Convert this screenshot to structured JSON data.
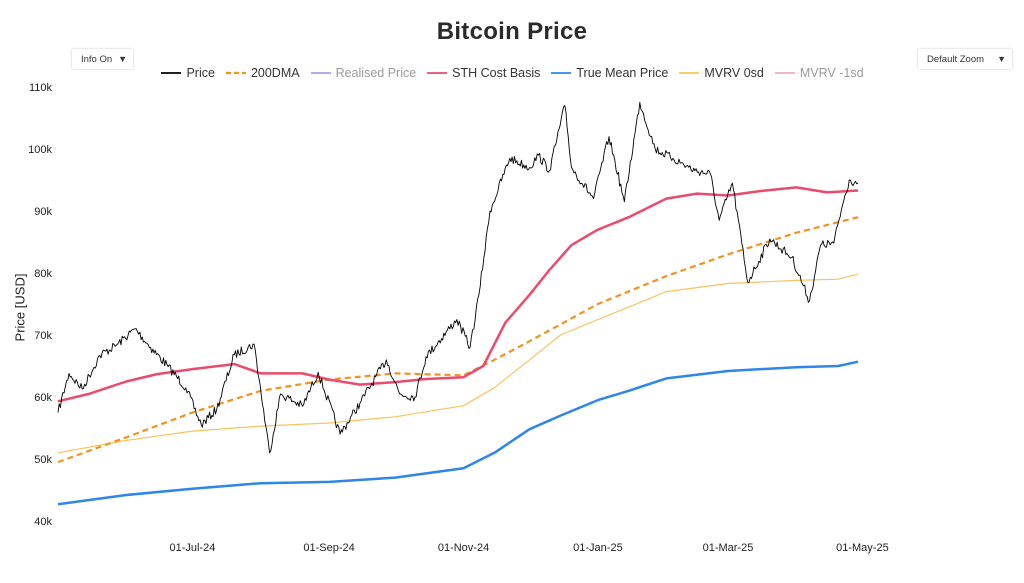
{
  "header": {
    "title": "Bitcoin Price",
    "info_toggle": "Info On",
    "zoom_select": "Default Zoom"
  },
  "chart_data": {
    "type": "line",
    "title": "Bitcoin Price",
    "ylabel": "Price [USD]",
    "xlabel": "",
    "ylim": [
      40000,
      110000
    ],
    "y_ticks": [
      "40k",
      "50k",
      "60k",
      "70k",
      "80k",
      "90k",
      "100k",
      "110k"
    ],
    "x_ticks": [
      "01-Jul-24",
      "01-Sep-24",
      "01-Nov-24",
      "01-Jan-25",
      "01-Mar-25",
      "01-May-25"
    ],
    "x_range": [
      "2024-05-01",
      "2025-04-29"
    ],
    "grid": false,
    "legend_position": "top",
    "series": [
      {
        "name": "Price",
        "color": "#000000",
        "dash": "solid",
        "visible": true,
        "points": [
          [
            "2024-05-01",
            57500
          ],
          [
            "2024-05-06",
            63800
          ],
          [
            "2024-05-12",
            61300
          ],
          [
            "2024-05-20",
            66700
          ],
          [
            "2024-05-28",
            68500
          ],
          [
            "2024-06-05",
            71000
          ],
          [
            "2024-06-12",
            68000
          ],
          [
            "2024-06-20",
            64900
          ],
          [
            "2024-06-28",
            61500
          ],
          [
            "2024-07-05",
            55500
          ],
          [
            "2024-07-12",
            58000
          ],
          [
            "2024-07-20",
            66800
          ],
          [
            "2024-07-29",
            68500
          ],
          [
            "2024-08-05",
            51000
          ],
          [
            "2024-08-10",
            60500
          ],
          [
            "2024-08-20",
            58500
          ],
          [
            "2024-08-27",
            64000
          ],
          [
            "2024-09-06",
            54000
          ],
          [
            "2024-09-15",
            59000
          ],
          [
            "2024-09-27",
            66000
          ],
          [
            "2024-10-03",
            60500
          ],
          [
            "2024-10-10",
            60000
          ],
          [
            "2024-10-15",
            66500
          ],
          [
            "2024-10-29",
            72500
          ],
          [
            "2024-11-04",
            68000
          ],
          [
            "2024-11-08",
            76500
          ],
          [
            "2024-11-13",
            90000
          ],
          [
            "2024-11-22",
            98500
          ],
          [
            "2024-12-01",
            97000
          ],
          [
            "2024-12-05",
            99000
          ],
          [
            "2024-12-10",
            96500
          ],
          [
            "2024-12-17",
            107000
          ],
          [
            "2024-12-20",
            97000
          ],
          [
            "2024-12-30",
            92000
          ],
          [
            "2025-01-06",
            102000
          ],
          [
            "2025-01-13",
            91500
          ],
          [
            "2025-01-20",
            107500
          ],
          [
            "2025-01-27",
            100000
          ],
          [
            "2025-02-04",
            98500
          ],
          [
            "2025-02-14",
            96500
          ],
          [
            "2025-02-21",
            96000
          ],
          [
            "2025-02-25",
            88500
          ],
          [
            "2025-03-03",
            94500
          ],
          [
            "2025-03-10",
            78500
          ],
          [
            "2025-03-20",
            85500
          ],
          [
            "2025-03-30",
            82500
          ],
          [
            "2025-04-07",
            75500
          ],
          [
            "2025-04-12",
            84500
          ],
          [
            "2025-04-18",
            84800
          ],
          [
            "2025-04-22",
            91000
          ],
          [
            "2025-04-25",
            95000
          ],
          [
            "2025-04-29",
            94500
          ]
        ]
      },
      {
        "name": "200DMA",
        "color": "#f4921f",
        "dash": "dashed",
        "visible": true,
        "points": [
          [
            "2024-05-01",
            49500
          ],
          [
            "2024-06-01",
            53500
          ],
          [
            "2024-07-01",
            57500
          ],
          [
            "2024-08-01",
            61000
          ],
          [
            "2024-09-01",
            62800
          ],
          [
            "2024-10-01",
            63800
          ],
          [
            "2024-11-01",
            63500
          ],
          [
            "2024-11-15",
            66000
          ],
          [
            "2024-12-01",
            69000
          ],
          [
            "2025-01-01",
            75000
          ],
          [
            "2025-02-01",
            79500
          ],
          [
            "2025-03-01",
            83000
          ],
          [
            "2025-04-01",
            86500
          ],
          [
            "2025-04-29",
            89000
          ]
        ]
      },
      {
        "name": "Realised Price",
        "color": "#a99cf0",
        "dash": "solid",
        "visible": false,
        "points": []
      },
      {
        "name": "STH Cost Basis",
        "color": "#ea4b6c",
        "dash": "solid",
        "visible": true,
        "points": [
          [
            "2024-05-01",
            59300
          ],
          [
            "2024-05-15",
            60500
          ],
          [
            "2024-06-01",
            62500
          ],
          [
            "2024-06-15",
            63700
          ],
          [
            "2024-07-01",
            64500
          ],
          [
            "2024-07-20",
            65300
          ],
          [
            "2024-08-01",
            63800
          ],
          [
            "2024-08-20",
            63800
          ],
          [
            "2024-09-01",
            62800
          ],
          [
            "2024-09-15",
            62000
          ],
          [
            "2024-10-01",
            62400
          ],
          [
            "2024-10-15",
            62900
          ],
          [
            "2024-11-01",
            63200
          ],
          [
            "2024-11-10",
            65000
          ],
          [
            "2024-11-20",
            72000
          ],
          [
            "2024-12-01",
            76500
          ],
          [
            "2024-12-10",
            80500
          ],
          [
            "2024-12-20",
            84500
          ],
          [
            "2025-01-01",
            87000
          ],
          [
            "2025-01-15",
            89000
          ],
          [
            "2025-02-01",
            92000
          ],
          [
            "2025-02-15",
            92800
          ],
          [
            "2025-03-01",
            92500
          ],
          [
            "2025-03-15",
            93200
          ],
          [
            "2025-04-01",
            93800
          ],
          [
            "2025-04-15",
            93000
          ],
          [
            "2025-04-29",
            93300
          ]
        ]
      },
      {
        "name": "True Mean Price",
        "color": "#2e86e8",
        "dash": "solid",
        "visible": true,
        "points": [
          [
            "2024-05-01",
            42700
          ],
          [
            "2024-06-01",
            44200
          ],
          [
            "2024-07-01",
            45200
          ],
          [
            "2024-08-01",
            46100
          ],
          [
            "2024-09-01",
            46300
          ],
          [
            "2024-10-01",
            47000
          ],
          [
            "2024-11-01",
            48500
          ],
          [
            "2024-11-15",
            51000
          ],
          [
            "2024-12-01",
            54800
          ],
          [
            "2024-12-15",
            57000
          ],
          [
            "2025-01-01",
            59500
          ],
          [
            "2025-01-15",
            61000
          ],
          [
            "2025-02-01",
            63000
          ],
          [
            "2025-03-01",
            64200
          ],
          [
            "2025-04-01",
            64800
          ],
          [
            "2025-04-20",
            65000
          ],
          [
            "2025-04-29",
            65700
          ]
        ]
      },
      {
        "name": "MVRV 0sd",
        "color": "#f9c35e",
        "dash": "solid",
        "visible": true,
        "points": [
          [
            "2024-05-01",
            51000
          ],
          [
            "2024-06-01",
            53000
          ],
          [
            "2024-07-01",
            54500
          ],
          [
            "2024-08-01",
            55300
          ],
          [
            "2024-09-01",
            55800
          ],
          [
            "2024-10-01",
            56800
          ],
          [
            "2024-11-01",
            58600
          ],
          [
            "2024-11-15",
            61500
          ],
          [
            "2024-12-01",
            66000
          ],
          [
            "2024-12-15",
            70000
          ],
          [
            "2025-01-01",
            72500
          ],
          [
            "2025-01-15",
            74500
          ],
          [
            "2025-02-01",
            77000
          ],
          [
            "2025-03-01",
            78300
          ],
          [
            "2025-04-01",
            78800
          ],
          [
            "2025-04-20",
            79000
          ],
          [
            "2025-04-29",
            79800
          ]
        ]
      },
      {
        "name": "MVRV -1sd",
        "color": "#f5a9c4",
        "dash": "solid",
        "visible": false,
        "points": []
      }
    ]
  }
}
